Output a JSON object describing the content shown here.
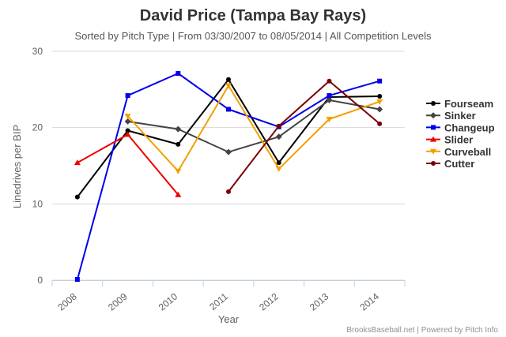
{
  "chart_data": {
    "type": "line",
    "title": "David Price (Tampa Bay Rays)",
    "subtitle": "Sorted by Pitch Type | From 03/30/2007 to 08/05/2014 | All Competition Levels",
    "xlabel": "Year",
    "ylabel": "Linedrives per BIP",
    "categories": [
      "2008",
      "2009",
      "2010",
      "2011",
      "2012",
      "2013",
      "2014"
    ],
    "ylim": [
      0,
      30
    ],
    "yticks": [
      "0",
      "10",
      "20",
      "30"
    ],
    "grid": true,
    "legend_position": "right",
    "credits": "BrooksBaseball.net | Powered by Pitch Info",
    "series": [
      {
        "name": "Fourseam",
        "color": "#000000",
        "marker": "circle",
        "values": [
          10.9,
          19.6,
          17.8,
          26.3,
          15.4,
          24.0,
          24.1
        ]
      },
      {
        "name": "Sinker",
        "color": "#444444",
        "marker": "diamond",
        "values": [
          null,
          20.8,
          19.8,
          16.8,
          18.8,
          23.6,
          22.4
        ]
      },
      {
        "name": "Changeup",
        "color": "#0000ee",
        "marker": "square",
        "values": [
          0.1,
          24.2,
          27.1,
          22.4,
          20.1,
          24.2,
          26.1
        ]
      },
      {
        "name": "Slider",
        "color": "#ee0000",
        "marker": "triangle",
        "values": [
          15.4,
          19.1,
          11.2,
          null,
          null,
          null,
          null
        ]
      },
      {
        "name": "Curveball",
        "color": "#f2a000",
        "marker": "triangle-down",
        "values": [
          null,
          21.5,
          14.3,
          25.5,
          14.6,
          21.1,
          23.4
        ]
      },
      {
        "name": "Cutter",
        "color": "#7a0000",
        "marker": "circle",
        "values": [
          null,
          null,
          null,
          11.6,
          20.2,
          26.1,
          20.5
        ]
      }
    ]
  }
}
